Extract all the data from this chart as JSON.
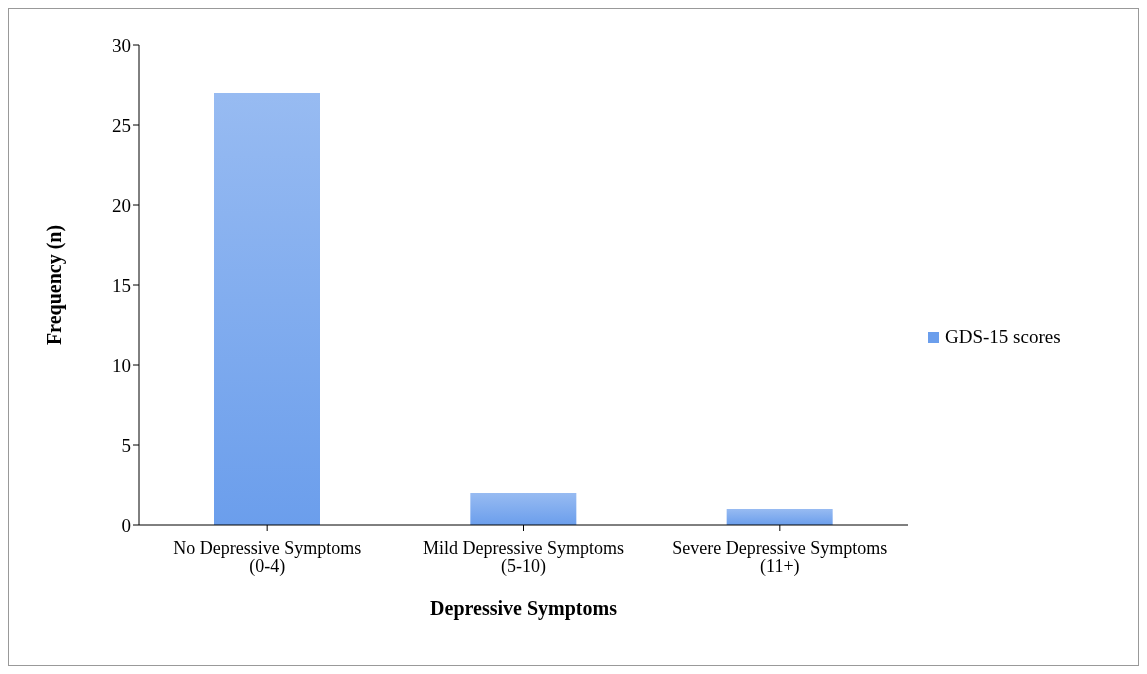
{
  "chart_data": {
    "type": "bar",
    "xlabel": "Depressive Symptoms",
    "ylabel": "Frequency (n)",
    "categories": [
      "No Depressive Symptoms (0-4)",
      "Mild Depressive Symptoms (5-10)",
      "Severe Depressive Symptoms (11+)"
    ],
    "series": [
      {
        "name": "GDS-15 scores",
        "color": "#6b9eec",
        "values": [
          27,
          2,
          1
        ]
      }
    ],
    "ylim": [
      0,
      30
    ],
    "yticks": [
      0,
      5,
      10,
      15,
      20,
      25,
      30
    ],
    "grid": false,
    "legend": "right"
  }
}
